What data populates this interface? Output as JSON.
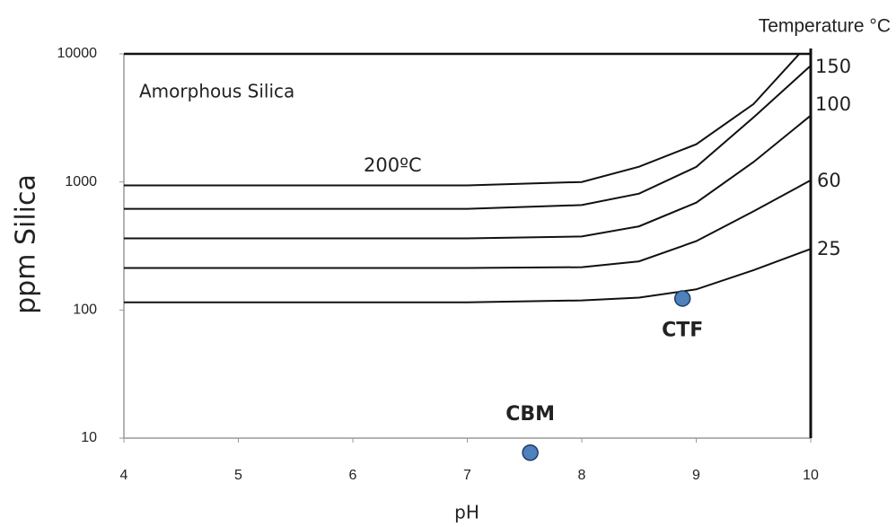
{
  "chart_data": {
    "type": "line",
    "y_scale": "log",
    "ylabel": "ppm Silica",
    "xlabel": "pH",
    "annotations": [
      "Amorphous Silica",
      "Temperature °C"
    ],
    "xlim": [
      4,
      10
    ],
    "xticks": [
      4,
      5,
      6,
      7,
      8,
      9,
      10
    ],
    "ylim": [
      10,
      10000
    ],
    "yticks": [
      10,
      100,
      1000,
      10000
    ],
    "series": [
      {
        "name": "200ºC",
        "color": "#111111",
        "x": [
          4,
          5,
          6,
          7,
          8,
          8.5,
          9,
          9.5,
          9.9
        ],
        "values": [
          940,
          940,
          940,
          940,
          1000,
          1315,
          1970,
          4060,
          10000
        ]
      },
      {
        "name": "150",
        "color": "#111111",
        "x": [
          4,
          5,
          6,
          7,
          8,
          8.5,
          9,
          9.5,
          10
        ],
        "values": [
          617,
          617,
          617,
          617,
          660,
          810,
          1310,
          3190,
          8100
        ]
      },
      {
        "name": "100",
        "color": "#111111",
        "x": [
          4,
          5,
          6,
          7,
          8,
          8.5,
          9,
          9.5,
          10
        ],
        "values": [
          363,
          363,
          363,
          363,
          375,
          450,
          690,
          1430,
          3300
        ]
      },
      {
        "name": "60",
        "color": "#111111",
        "x": [
          4,
          5,
          6,
          7,
          8,
          8.5,
          9,
          9.5,
          10
        ],
        "values": [
          213,
          213,
          213,
          213,
          216,
          240,
          345,
          590,
          1030
        ]
      },
      {
        "name": "25",
        "color": "#111111",
        "x": [
          4,
          5,
          6,
          7,
          8,
          8.5,
          9,
          9.5,
          10
        ],
        "values": [
          115,
          115,
          115,
          115,
          119,
          125,
          145,
          205,
          300
        ]
      }
    ],
    "points": [
      {
        "label": "CTF",
        "x": 8.88,
        "y": 123,
        "color": "#4f81bd"
      },
      {
        "label": "CBM",
        "x": 7.55,
        "y": 7.7,
        "color": "#4f81bd"
      }
    ]
  }
}
